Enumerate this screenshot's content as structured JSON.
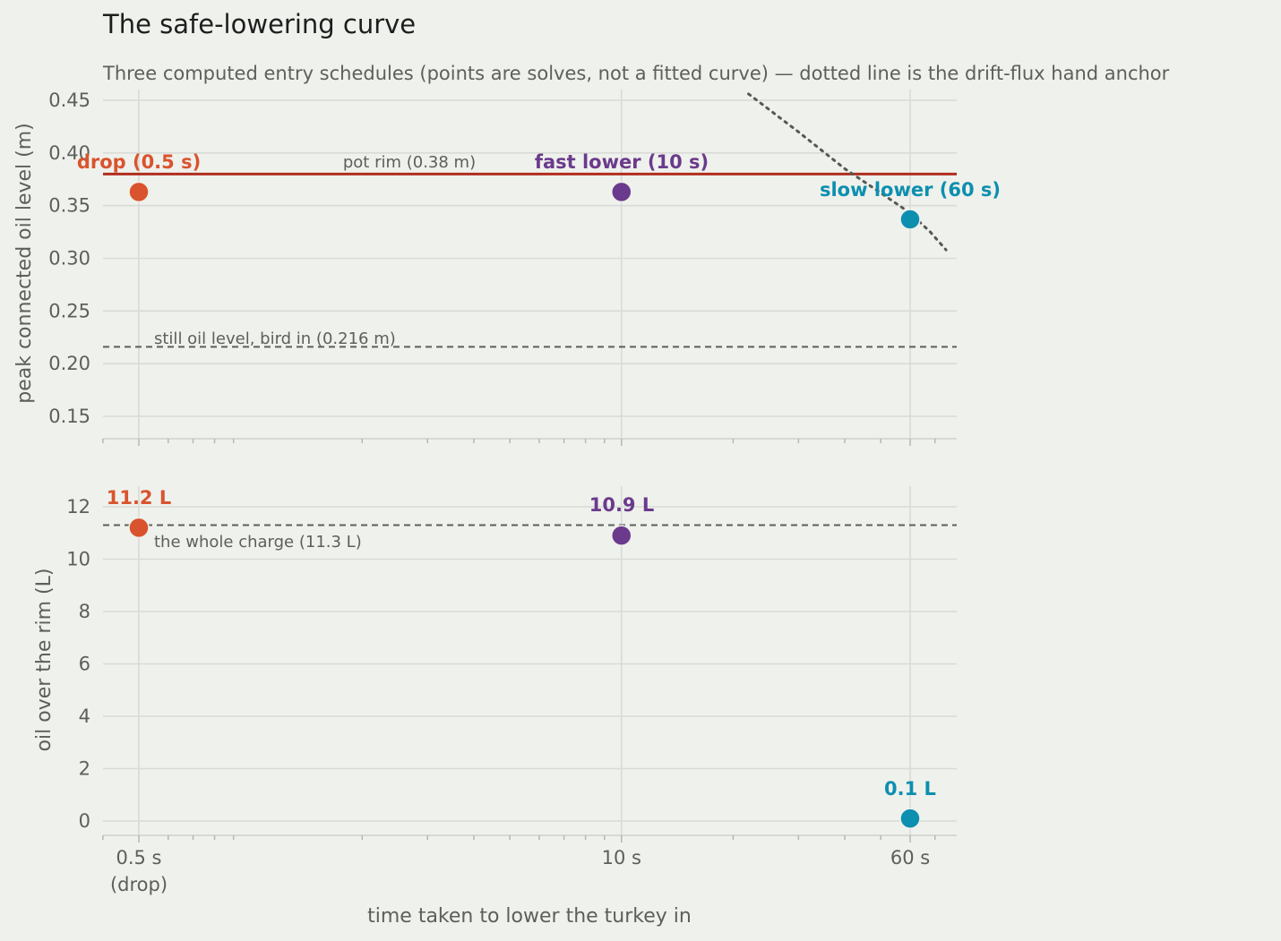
{
  "colors": {
    "background": "#eff1ec",
    "drop": "#d9542e",
    "fast": "#6b3a8c",
    "slow": "#0d8fb0",
    "rim": "#b02e1e",
    "reference": "#5c5f5a"
  },
  "chart_data": [
    {
      "type": "scatter",
      "title": "The safe-lowering curve",
      "subtitle": "Three computed entry schedules (points are solves, not a fitted curve) — dotted line is the drift-flux hand anchor",
      "xlabel": "",
      "ylabel": "peak connected oil level  (m)",
      "x_scale": "log",
      "xlim": [
        0.4,
        75
      ],
      "ylim": [
        0.13,
        0.46
      ],
      "yticks": [
        "0.15",
        "0.20",
        "0.25",
        "0.30",
        "0.35",
        "0.40",
        "0.45"
      ],
      "grid": true,
      "points": [
        {
          "label": "drop (0.5 s)",
          "x": 0.5,
          "y": 0.363,
          "color_key": "drop"
        },
        {
          "label": "fast lower (10 s)",
          "x": 10,
          "y": 0.363,
          "color_key": "fast"
        },
        {
          "label": "slow lower (60 s)",
          "x": 60,
          "y": 0.337,
          "color_key": "slow"
        }
      ],
      "reference_lines": [
        {
          "label": "pot rim (0.38 m)",
          "y": 0.38,
          "style": "solid",
          "color_key": "rim"
        },
        {
          "label": "still oil level, bird in (0.216 m)",
          "y": 0.216,
          "style": "dashed",
          "color_key": "reference"
        }
      ],
      "anchor_curve": {
        "style": "dotted",
        "x": [
          22,
          30,
          40,
          50,
          60,
          68,
          75
        ],
        "y": [
          0.456,
          0.42,
          0.385,
          0.362,
          0.343,
          0.325,
          0.308
        ]
      }
    },
    {
      "type": "scatter",
      "title": "",
      "xlabel": "time taken to lower the turkey in",
      "ylabel": "oil over the rim  (L)",
      "x_scale": "log",
      "xlim": [
        0.4,
        75
      ],
      "ylim": [
        -0.5,
        12.8
      ],
      "yticks": [
        "0",
        "2",
        "4",
        "6",
        "8",
        "10",
        "12"
      ],
      "xticks": [
        {
          "x": 0.5,
          "line1": "0.5 s",
          "line2": "(drop)"
        },
        {
          "x": 10,
          "line1": "10 s",
          "line2": ""
        },
        {
          "x": 60,
          "line1": "60 s",
          "line2": ""
        }
      ],
      "grid": true,
      "points": [
        {
          "label": "11.2 L",
          "x": 0.5,
          "y": 11.2,
          "color_key": "drop"
        },
        {
          "label": "10.9 L",
          "x": 10,
          "y": 10.9,
          "color_key": "fast"
        },
        {
          "label": "0.1 L",
          "x": 60,
          "y": 0.1,
          "color_key": "slow"
        }
      ],
      "reference_lines": [
        {
          "label": "the whole charge (11.3 L)",
          "y": 11.3,
          "style": "dashed",
          "color_key": "reference"
        }
      ]
    }
  ]
}
